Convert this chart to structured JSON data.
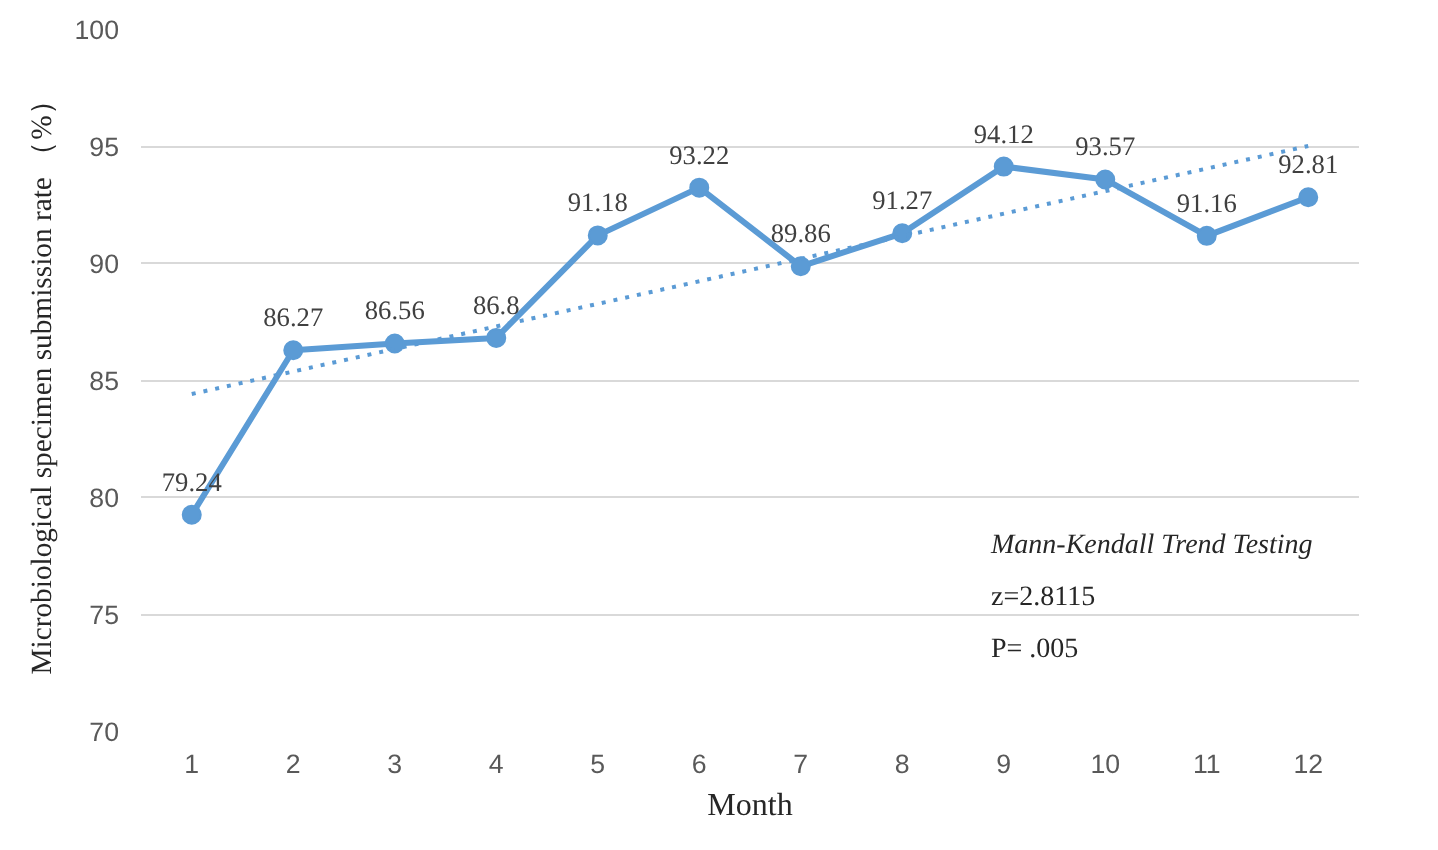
{
  "chart_data": {
    "type": "line",
    "xlabel": "Month",
    "ylabel": "Microbiological specimen submission rate （%）",
    "x": [
      1,
      2,
      3,
      4,
      5,
      6,
      7,
      8,
      9,
      10,
      11,
      12
    ],
    "xlim": [
      0.5,
      12.5
    ],
    "xticks": [
      1,
      2,
      3,
      4,
      5,
      6,
      7,
      8,
      9,
      10,
      11,
      12
    ],
    "ylim": [
      70,
      100
    ],
    "yticks": [
      70,
      75,
      80,
      85,
      90,
      95,
      100
    ],
    "grid": "y",
    "data_labels": true,
    "marker": "circle",
    "line_style": "solid",
    "series": [
      {
        "color": "#5b9bd5",
        "values": [
          79.24,
          86.27,
          86.56,
          86.8,
          91.18,
          93.22,
          89.86,
          91.27,
          94.12,
          93.57,
          91.16,
          92.81
        ]
      },
      {
        "type": "line",
        "color": "#5b9bd5",
        "x": [
          1,
          12
        ],
        "values": [
          84.4,
          95.0
        ],
        "marker": "none",
        "line_style": "dotted",
        "value_labels": [
          null,
          null
        ]
      }
    ],
    "annotations": [
      "Mann-Kendall Trend Testing",
      "z=2.8115",
      "P= .005"
    ]
  }
}
